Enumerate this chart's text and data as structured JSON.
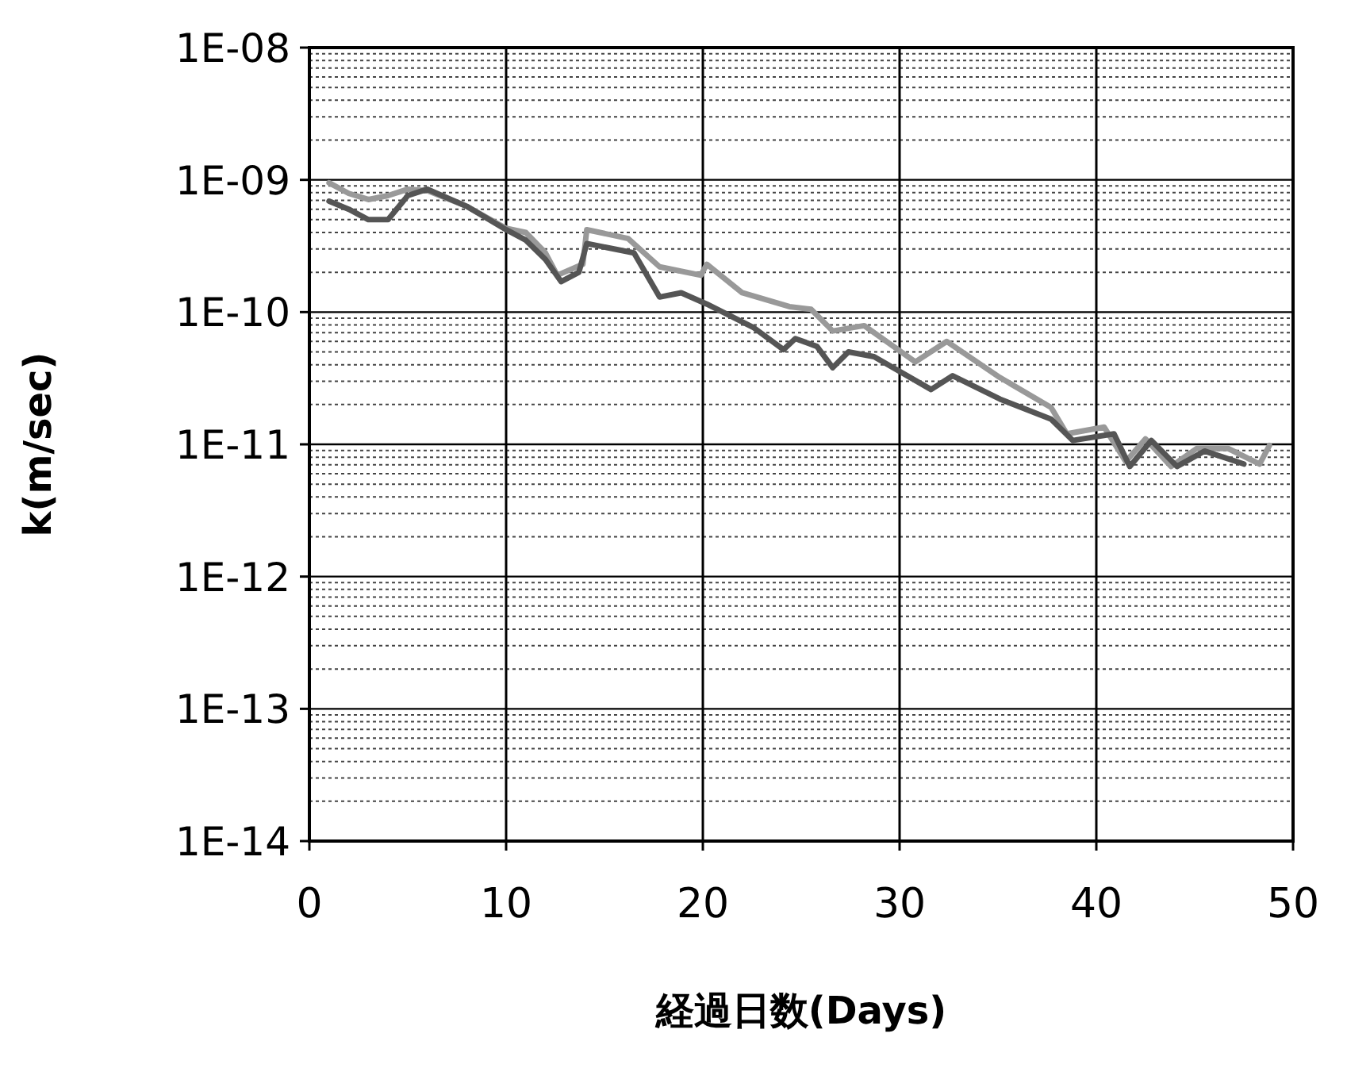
{
  "chart_data": {
    "type": "line",
    "xlabel": "経過日数(Days)",
    "ylabel": "k(m/sec)",
    "log": "y",
    "grid": true,
    "marker": "none",
    "line_style": "solid",
    "xlim": [
      0,
      50
    ],
    "xticks": [
      0,
      10,
      20,
      30,
      40,
      50
    ],
    "ylim": [
      1e-14,
      1e-08
    ],
    "yticks": [
      {
        "value": 1e-14,
        "label": "1E-14"
      },
      {
        "value": 1e-13,
        "label": "1E-13"
      },
      {
        "value": 1e-12,
        "label": "1E-12"
      },
      {
        "value": 1e-11,
        "label": "1E-11"
      },
      {
        "value": 1e-10,
        "label": "1E-10"
      },
      {
        "value": 1e-09,
        "label": "1E-09"
      },
      {
        "value": 1e-08,
        "label": "1E-08"
      }
    ],
    "series": [
      {
        "color": "#999999",
        "x": [
          1,
          2,
          3,
          4,
          5,
          6,
          8,
          10,
          11,
          12,
          12.6,
          13.9,
          14.1,
          16.2,
          17.8,
          19.9,
          20.2,
          22,
          24.4,
          25.5,
          26.6,
          28.2,
          30.8,
          32.4,
          35.1,
          37.7,
          38.5,
          40.4,
          41.5,
          42.5,
          43.8,
          45.1,
          46.7,
          48.3,
          48.8
        ],
        "values": [
          9.5e-10,
          7.9e-10,
          7.1e-10,
          7.6e-10,
          8.5e-10,
          8.3e-10,
          6.3e-10,
          4.3e-10,
          4e-10,
          2.8e-10,
          1.9e-10,
          2.3e-10,
          4.2e-10,
          3.6e-10,
          2.2e-10,
          1.9e-10,
          2.3e-10,
          1.4e-10,
          1.1e-10,
          1.05e-10,
          7.2e-11,
          7.9e-11,
          4.2e-11,
          6e-11,
          3.2e-11,
          1.9e-11,
          1.2e-11,
          1.35e-11,
          7.4e-12,
          1.1e-11,
          6.8e-12,
          9.3e-12,
          9.3e-12,
          7.1e-12,
          9.8e-12
        ]
      },
      {
        "color": "#555555",
        "x": [
          1,
          2,
          3,
          4,
          5,
          6,
          8,
          10,
          11,
          12,
          12.8,
          13.7,
          14.1,
          16.5,
          17.8,
          18.9,
          20.2,
          22.6,
          24.1,
          24.7,
          25.8,
          26.6,
          27.4,
          28.7,
          31.6,
          32.7,
          35.1,
          37.7,
          38.8,
          40.9,
          41.7,
          42.8,
          44.1,
          45.5,
          47.5
        ],
        "values": [
          6.9e-10,
          6e-10,
          5e-10,
          5e-10,
          7.6e-10,
          8.5e-10,
          6.3e-10,
          4.2e-10,
          3.5e-10,
          2.5e-10,
          1.7e-10,
          2e-10,
          3.3e-10,
          2.8e-10,
          1.3e-10,
          1.4e-10,
          1.15e-10,
          7.6e-11,
          5.2e-11,
          6.3e-11,
          5.5e-11,
          3.8e-11,
          5e-11,
          4.6e-11,
          2.6e-11,
          3.3e-11,
          2.2e-11,
          1.55e-11,
          1.07e-11,
          1.2e-11,
          6.8e-12,
          1.07e-11,
          6.8e-12,
          8.9e-12,
          7.1e-12
        ]
      }
    ]
  }
}
